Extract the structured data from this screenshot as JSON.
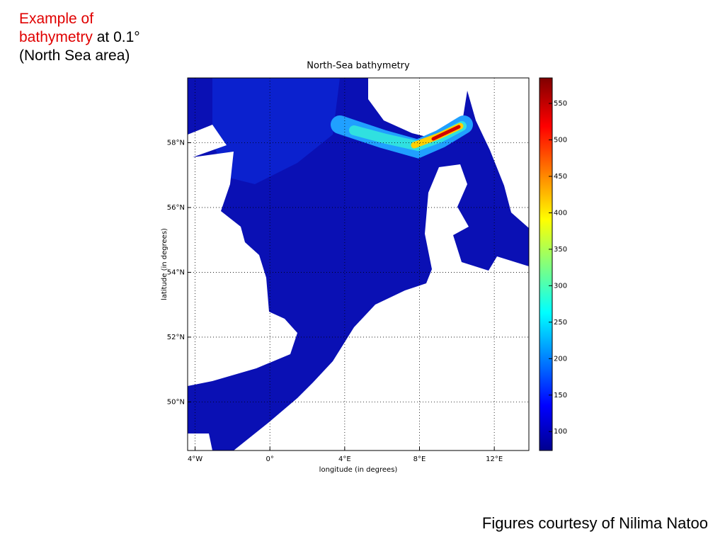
{
  "caption": [
    "Example of",
    "bathymetry",
    "at 0.1°",
    "(North Sea area)"
  ],
  "footer": "Figures courtesy of Nilima Natoo",
  "chart_data": {
    "type": "heatmap",
    "title": "North-Sea bathymetry",
    "xlabel": "longitude (in degrees)",
    "ylabel": "latitude (in degrees)",
    "xlim": [
      -4.4,
      13.85
    ],
    "xticks": [
      {
        "value": -4,
        "label": "4°W"
      },
      {
        "value": 0,
        "label": "0°"
      },
      {
        "value": 4,
        "label": "4°E"
      },
      {
        "value": 8,
        "label": "8°E"
      },
      {
        "value": 12,
        "label": "12°E"
      }
    ],
    "ylim": [
      48.5,
      60
    ],
    "yticks": [
      {
        "value": 50,
        "label": "50°N"
      },
      {
        "value": 52,
        "label": "52°N"
      },
      {
        "value": 54,
        "label": "54°N"
      },
      {
        "value": 56,
        "label": "56°N"
      },
      {
        "value": 58,
        "label": "58°N"
      }
    ],
    "clim": [
      74,
      585
    ],
    "cticks": [
      100,
      150,
      200,
      250,
      300,
      350,
      400,
      450,
      500,
      550
    ],
    "colormap": "jet",
    "grid": true
  }
}
